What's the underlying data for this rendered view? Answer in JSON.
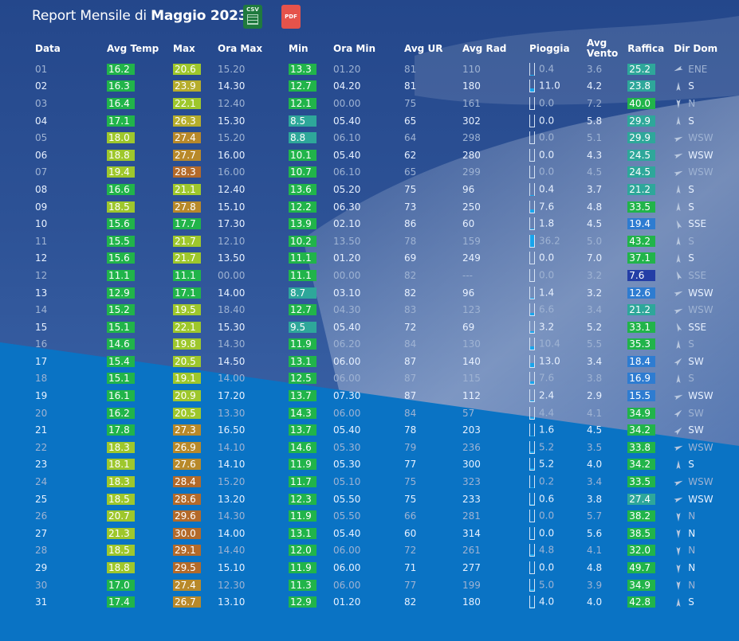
{
  "title": {
    "prefix": "Report Mensile di ",
    "month": "Maggio 2023"
  },
  "export": {
    "csv_label": "CSV",
    "pdf_label": "PDF"
  },
  "headers": {
    "data": "Data",
    "avg_temp": "Avg Temp",
    "max": "Max",
    "ora_max": "Ora Max",
    "min": "Min",
    "ora_min": "Ora Min",
    "avg_ur": "Avg UR",
    "avg_rad": "Avg Rad",
    "pioggia": "Pioggia",
    "avg_vento": "Avg Vento",
    "raffica": "Raffica",
    "dir_dom": "Dir Dom"
  },
  "rows": [
    {
      "d": "01",
      "t": "16.2",
      "mx": "20.6",
      "omx": "15.20",
      "mn": "13.3",
      "omn": "01.20",
      "ur": "81",
      "rad": "110",
      "rain": "0.4",
      "wind": "3.6",
      "gust": "25.2",
      "dir": "ENE"
    },
    {
      "d": "02",
      "t": "16.3",
      "mx": "23.9",
      "omx": "14.30",
      "mn": "12.7",
      "omn": "04.20",
      "ur": "81",
      "rad": "180",
      "rain": "11.0",
      "wind": "4.2",
      "gust": "23.8",
      "dir": "S"
    },
    {
      "d": "03",
      "t": "16.4",
      "mx": "22.1",
      "omx": "12.40",
      "mn": "12.1",
      "omn": "00.00",
      "ur": "75",
      "rad": "161",
      "rain": "0.0",
      "wind": "7.2",
      "gust": "40.0",
      "dir": "N"
    },
    {
      "d": "04",
      "t": "17.1",
      "mx": "26.3",
      "omx": "15.30",
      "mn": "8.5",
      "omn": "05.40",
      "ur": "65",
      "rad": "302",
      "rain": "0.0",
      "wind": "5.8",
      "gust": "29.9",
      "dir": "S"
    },
    {
      "d": "05",
      "t": "18.0",
      "mx": "27.4",
      "omx": "15.20",
      "mn": "8.8",
      "omn": "06.10",
      "ur": "64",
      "rad": "298",
      "rain": "0.0",
      "wind": "5.1",
      "gust": "29.9",
      "dir": "WSW"
    },
    {
      "d": "06",
      "t": "18.8",
      "mx": "27.7",
      "omx": "16.00",
      "mn": "10.1",
      "omn": "05.40",
      "ur": "62",
      "rad": "280",
      "rain": "0.0",
      "wind": "4.3",
      "gust": "24.5",
      "dir": "WSW"
    },
    {
      "d": "07",
      "t": "19.4",
      "mx": "28.3",
      "omx": "16.00",
      "mn": "10.7",
      "omn": "06.10",
      "ur": "65",
      "rad": "299",
      "rain": "0.0",
      "wind": "4.5",
      "gust": "24.5",
      "dir": "WSW"
    },
    {
      "d": "08",
      "t": "16.6",
      "mx": "21.1",
      "omx": "12.40",
      "mn": "13.6",
      "omn": "05.20",
      "ur": "75",
      "rad": "96",
      "rain": "0.4",
      "wind": "3.7",
      "gust": "21.2",
      "dir": "S"
    },
    {
      "d": "09",
      "t": "18.5",
      "mx": "27.8",
      "omx": "15.10",
      "mn": "12.2",
      "omn": "06.30",
      "ur": "73",
      "rad": "250",
      "rain": "7.6",
      "wind": "4.8",
      "gust": "33.5",
      "dir": "S"
    },
    {
      "d": "10",
      "t": "15.6",
      "mx": "17.7",
      "omx": "17.30",
      "mn": "13.9",
      "omn": "02.10",
      "ur": "86",
      "rad": "60",
      "rain": "1.8",
      "wind": "4.5",
      "gust": "19.4",
      "dir": "SSE"
    },
    {
      "d": "11",
      "t": "15.5",
      "mx": "21.7",
      "omx": "12.10",
      "mn": "10.2",
      "omn": "13.50",
      "ur": "78",
      "rad": "159",
      "rain": "36.2",
      "wind": "5.0",
      "gust": "43.2",
      "dir": "S"
    },
    {
      "d": "12",
      "t": "15.6",
      "mx": "21.7",
      "omx": "13.50",
      "mn": "11.1",
      "omn": "01.20",
      "ur": "69",
      "rad": "249",
      "rain": "0.0",
      "wind": "7.0",
      "gust": "37.1",
      "dir": "S"
    },
    {
      "d": "12",
      "t": "11.1",
      "mx": "11.1",
      "omx": "00.00",
      "mn": "11.1",
      "omn": "00.00",
      "ur": "82",
      "rad": "---",
      "rain": "0.0",
      "wind": "3.2",
      "gust": "7.6",
      "dir": "SSE"
    },
    {
      "d": "13",
      "t": "12.9",
      "mx": "17.1",
      "omx": "14.00",
      "mn": "8.7",
      "omn": "03.10",
      "ur": "82",
      "rad": "96",
      "rain": "1.4",
      "wind": "3.2",
      "gust": "12.6",
      "dir": "WSW"
    },
    {
      "d": "14",
      "t": "15.2",
      "mx": "19.5",
      "omx": "18.40",
      "mn": "12.7",
      "omn": "04.30",
      "ur": "83",
      "rad": "123",
      "rain": "6.6",
      "wind": "3.4",
      "gust": "21.2",
      "dir": "WSW"
    },
    {
      "d": "15",
      "t": "15.1",
      "mx": "22.1",
      "omx": "15.30",
      "mn": "9.5",
      "omn": "05.40",
      "ur": "72",
      "rad": "69",
      "rain": "3.2",
      "wind": "5.2",
      "gust": "33.1",
      "dir": "SSE"
    },
    {
      "d": "16",
      "t": "14.6",
      "mx": "19.8",
      "omx": "14.30",
      "mn": "11.9",
      "omn": "06.20",
      "ur": "84",
      "rad": "130",
      "rain": "10.4",
      "wind": "5.5",
      "gust": "35.3",
      "dir": "S"
    },
    {
      "d": "17",
      "t": "15.4",
      "mx": "20.5",
      "omx": "14.50",
      "mn": "13.1",
      "omn": "06.00",
      "ur": "87",
      "rad": "140",
      "rain": "13.0",
      "wind": "3.4",
      "gust": "18.4",
      "dir": "SW"
    },
    {
      "d": "18",
      "t": "15.1",
      "mx": "19.1",
      "omx": "14.00",
      "mn": "12.5",
      "omn": "06.00",
      "ur": "87",
      "rad": "115",
      "rain": "7.6",
      "wind": "3.8",
      "gust": "16.9",
      "dir": "S"
    },
    {
      "d": "19",
      "t": "16.1",
      "mx": "20.9",
      "omx": "17.20",
      "mn": "13.7",
      "omn": "07.30",
      "ur": "87",
      "rad": "112",
      "rain": "2.4",
      "wind": "2.9",
      "gust": "15.5",
      "dir": "WSW"
    },
    {
      "d": "20",
      "t": "16.2",
      "mx": "20.5",
      "omx": "13.30",
      "mn": "14.3",
      "omn": "06.00",
      "ur": "84",
      "rad": "57",
      "rain": "4.4",
      "wind": "4.1",
      "gust": "34.9",
      "dir": "SW"
    },
    {
      "d": "21",
      "t": "17.8",
      "mx": "27.3",
      "omx": "16.50",
      "mn": "13.7",
      "omn": "05.40",
      "ur": "78",
      "rad": "203",
      "rain": "1.6",
      "wind": "4.5",
      "gust": "34.2",
      "dir": "SW"
    },
    {
      "d": "22",
      "t": "18.3",
      "mx": "26.9",
      "omx": "14.10",
      "mn": "14.6",
      "omn": "05.30",
      "ur": "79",
      "rad": "236",
      "rain": "5.2",
      "wind": "3.5",
      "gust": "33.8",
      "dir": "WSW"
    },
    {
      "d": "23",
      "t": "18.1",
      "mx": "27.6",
      "omx": "14.10",
      "mn": "11.9",
      "omn": "05.30",
      "ur": "77",
      "rad": "300",
      "rain": "5.2",
      "wind": "4.0",
      "gust": "34.2",
      "dir": "S"
    },
    {
      "d": "24",
      "t": "18.3",
      "mx": "28.4",
      "omx": "15.20",
      "mn": "11.7",
      "omn": "05.10",
      "ur": "75",
      "rad": "323",
      "rain": "0.2",
      "wind": "3.4",
      "gust": "33.5",
      "dir": "WSW"
    },
    {
      "d": "25",
      "t": "18.5",
      "mx": "28.6",
      "omx": "13.20",
      "mn": "12.3",
      "omn": "05.50",
      "ur": "75",
      "rad": "233",
      "rain": "0.6",
      "wind": "3.8",
      "gust": "27.4",
      "dir": "WSW"
    },
    {
      "d": "26",
      "t": "20.7",
      "mx": "29.6",
      "omx": "14.30",
      "mn": "11.9",
      "omn": "05.50",
      "ur": "66",
      "rad": "281",
      "rain": "0.0",
      "wind": "5.7",
      "gust": "38.2",
      "dir": "N"
    },
    {
      "d": "27",
      "t": "21.3",
      "mx": "30.0",
      "omx": "14.00",
      "mn": "13.1",
      "omn": "05.40",
      "ur": "60",
      "rad": "314",
      "rain": "0.0",
      "wind": "5.6",
      "gust": "38.5",
      "dir": "N"
    },
    {
      "d": "28",
      "t": "18.5",
      "mx": "29.1",
      "omx": "14.40",
      "mn": "12.0",
      "omn": "06.00",
      "ur": "72",
      "rad": "261",
      "rain": "4.8",
      "wind": "4.1",
      "gust": "32.0",
      "dir": "N"
    },
    {
      "d": "29",
      "t": "18.8",
      "mx": "29.5",
      "omx": "15.10",
      "mn": "11.9",
      "omn": "06.00",
      "ur": "71",
      "rad": "277",
      "rain": "0.0",
      "wind": "4.8",
      "gust": "49.7",
      "dir": "N"
    },
    {
      "d": "30",
      "t": "17.0",
      "mx": "27.4",
      "omx": "12.30",
      "mn": "11.3",
      "omn": "06.00",
      "ur": "77",
      "rad": "199",
      "rain": "5.0",
      "wind": "3.9",
      "gust": "34.9",
      "dir": "N"
    },
    {
      "d": "31",
      "t": "17.4",
      "mx": "26.7",
      "omx": "13.10",
      "mn": "12.9",
      "omn": "01.20",
      "ur": "82",
      "rad": "180",
      "rain": "4.0",
      "wind": "4.0",
      "gust": "42.8",
      "dir": "S"
    }
  ],
  "colors": {
    "background": "#0a73c4",
    "sky": "#2a4f93",
    "green": "#21b44a",
    "lime": "#9ec72c",
    "khaki": "#b6ad2c",
    "amber": "#b8892a",
    "brown": "#b36a2a",
    "teal": "#2ea79a",
    "blue_gust": "#2e7cd1",
    "navy_gust": "#243ea6",
    "rain_fill": "#18a4ec"
  }
}
